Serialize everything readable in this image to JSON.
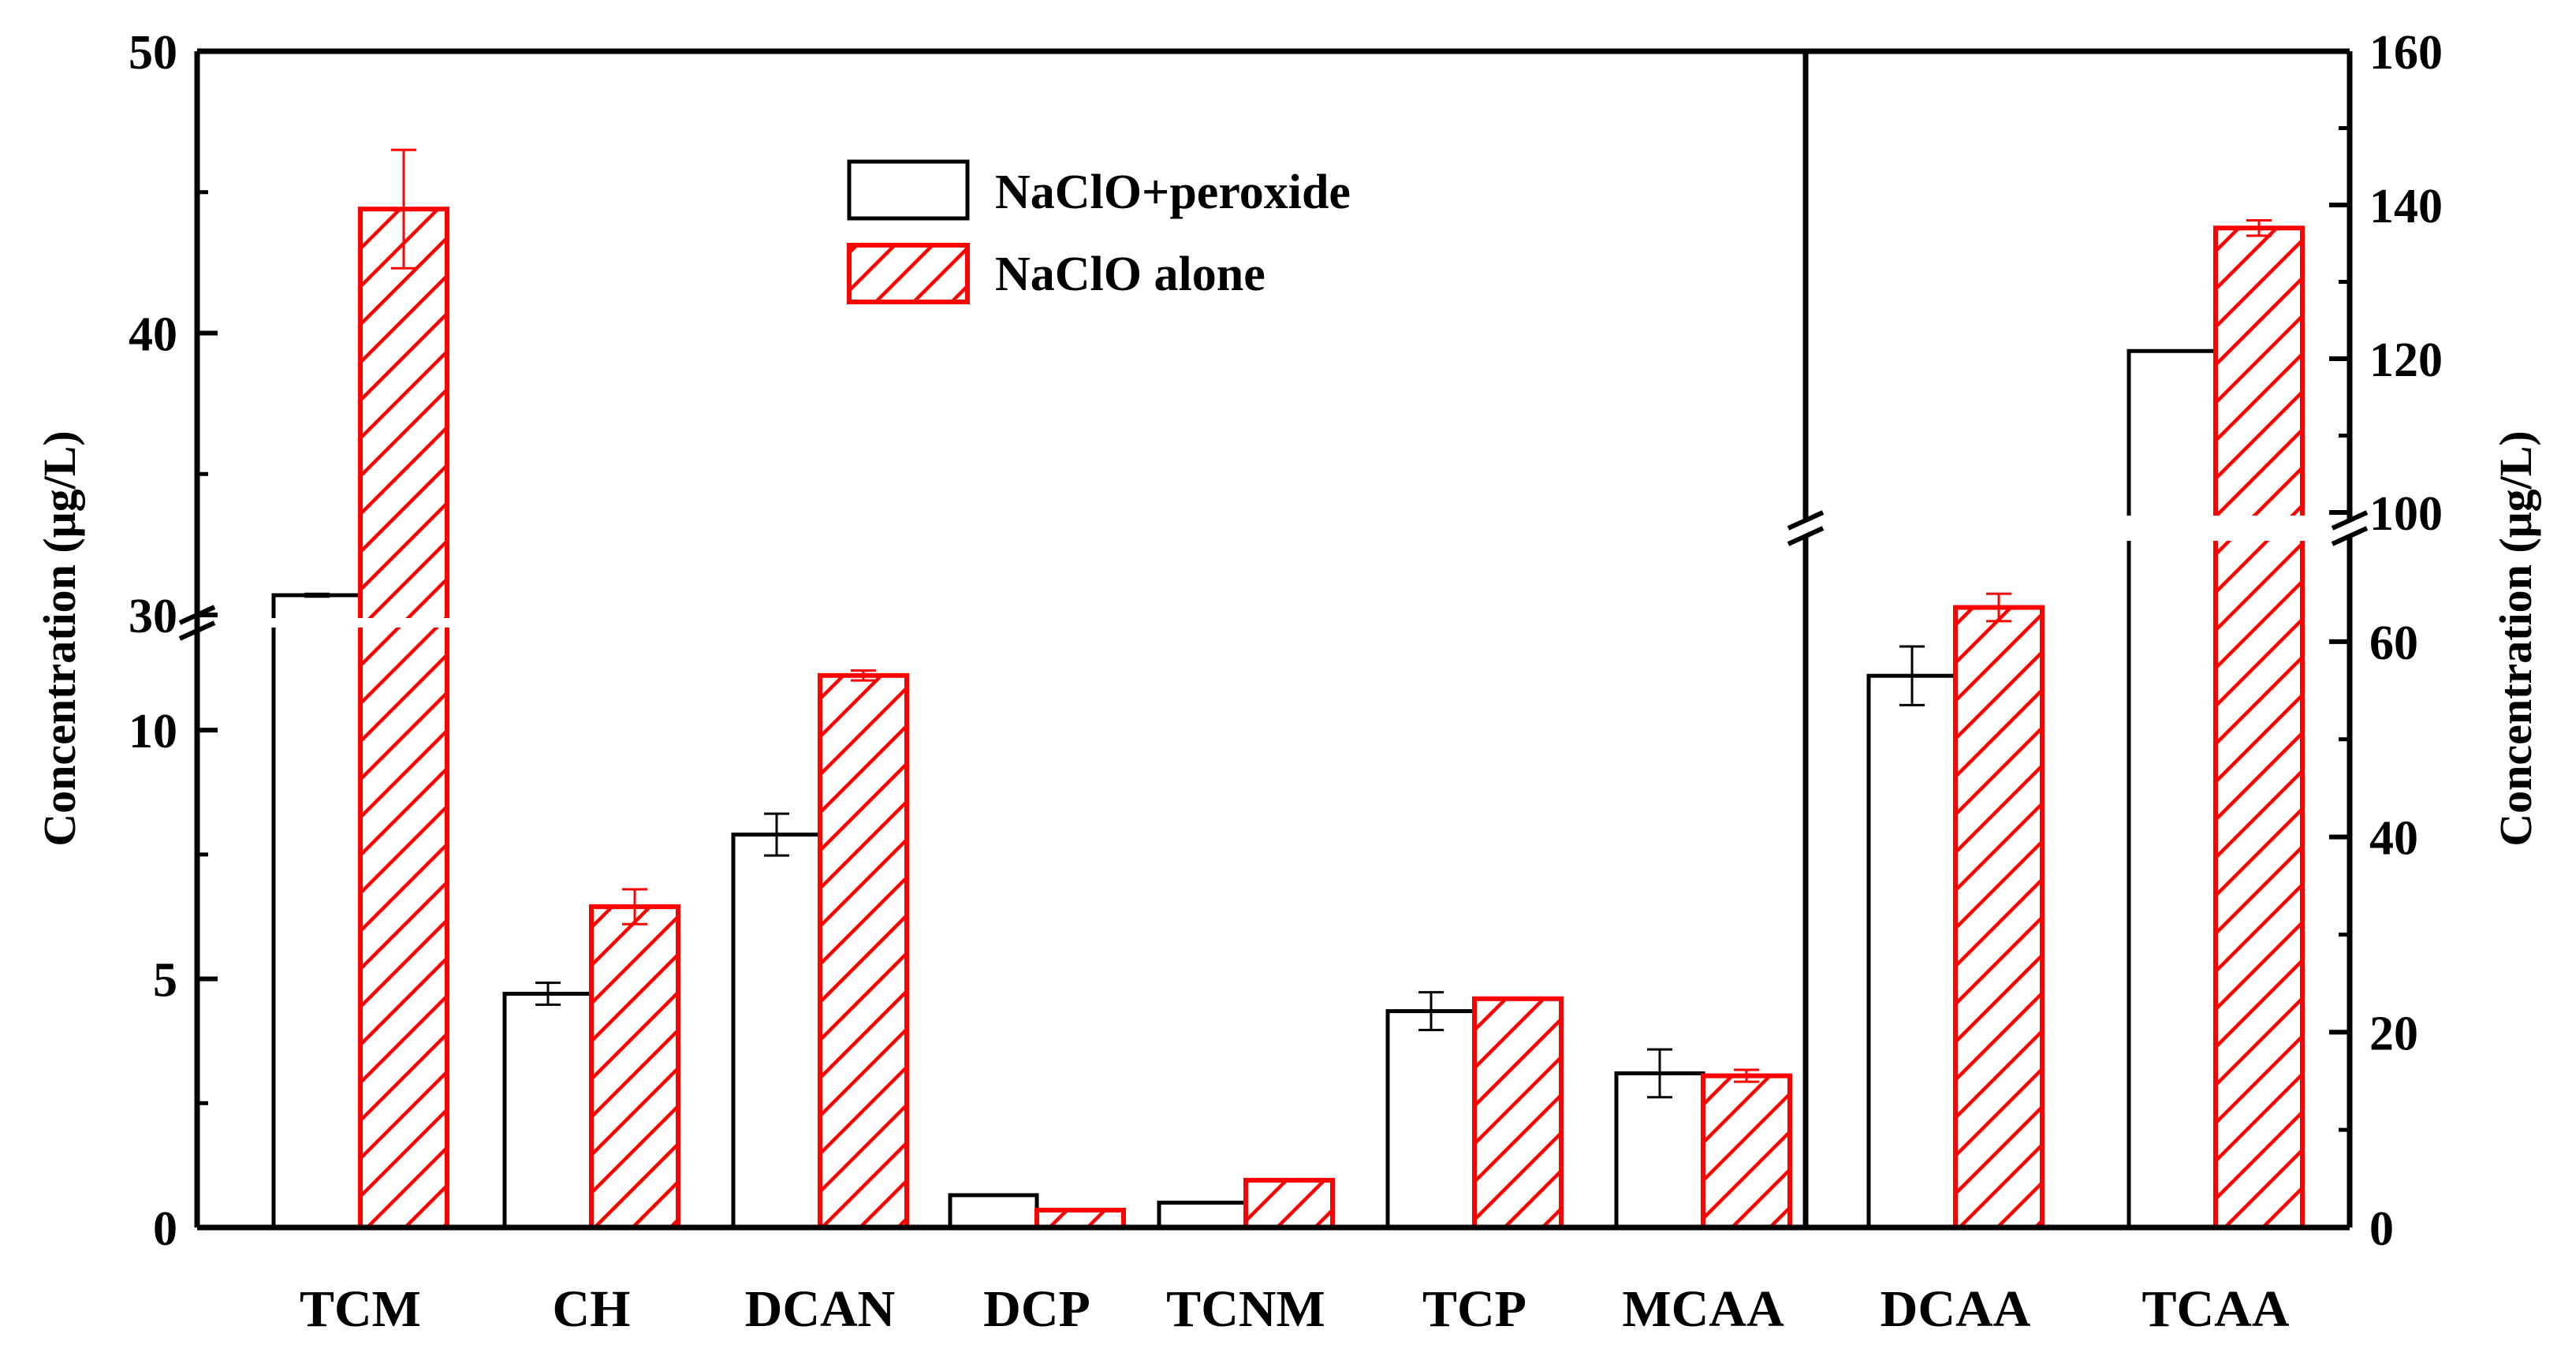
{
  "colors": {
    "peroxide": "#000000",
    "alone": "#ff0000",
    "background": "#ffffff"
  },
  "chart_data": {
    "type": "bar",
    "title": "",
    "xlabel": "",
    "ylabel_left": "Concentration (μg/L)",
    "ylabel_right": "Concentration (μg/L)",
    "legend_position": "top-center",
    "categories": [
      "TCM",
      "CH",
      "DCAN",
      "DCP",
      "TCNM",
      "TCP",
      "MCAA",
      "DCAA",
      "TCAA"
    ],
    "left_axis": {
      "categories": [
        "TCM",
        "CH",
        "DCAN",
        "DCP",
        "TCNM",
        "TCP",
        "MCAA"
      ],
      "ylim": [
        0,
        50
      ],
      "break": [
        12,
        30
      ],
      "ticks": [
        0,
        5,
        10,
        30,
        40,
        50
      ],
      "tick_labels": [
        "0",
        "5",
        "10",
        "30",
        "40",
        "50"
      ]
    },
    "right_axis": {
      "categories": [
        "DCAA",
        "TCAA"
      ],
      "ylim": [
        0,
        160
      ],
      "break": [
        70,
        100
      ],
      "ticks": [
        0,
        20,
        40,
        60,
        100,
        120,
        140,
        160
      ],
      "tick_labels": [
        "0",
        "20",
        "40",
        "60",
        "100",
        "120",
        "140",
        "160"
      ]
    },
    "series": [
      {
        "name": "NaClO+peroxide",
        "values": [
          30.7,
          4.7,
          7.9,
          0.65,
          0.5,
          4.35,
          3.1,
          56.5,
          121
        ],
        "errors": [
          0.05,
          0.22,
          0.42,
          0.0,
          0.0,
          0.38,
          0.48,
          3.0,
          0.0
        ]
      },
      {
        "name": "NaClO alone",
        "values": [
          44.4,
          6.45,
          11.1,
          0.35,
          0.95,
          4.6,
          3.05,
          63.5,
          137
        ],
        "errors": [
          2.1,
          0.35,
          0.1,
          0.0,
          0.0,
          0.0,
          0.12,
          1.4,
          1.0
        ]
      }
    ]
  }
}
